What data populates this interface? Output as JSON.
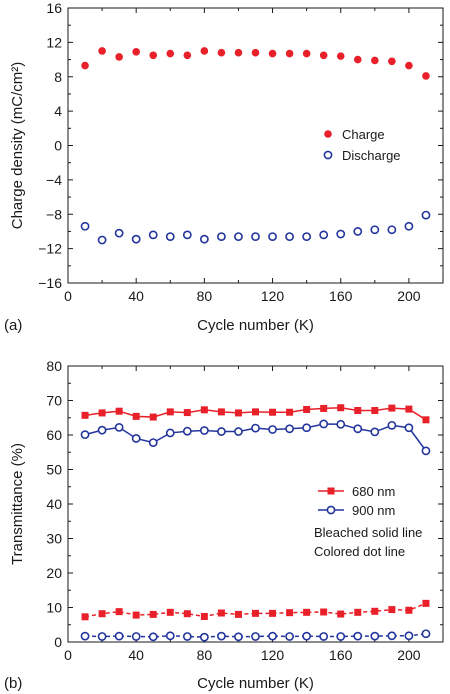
{
  "chart_data": [
    {
      "panel_label": "(a)",
      "type": "scatter",
      "xlabel": "Cycle number (K)",
      "ylabel": "Charge density (mC/cm²)",
      "xlim": [
        0,
        220
      ],
      "ylim": [
        -16,
        16
      ],
      "xticks": [
        0,
        40,
        80,
        120,
        160,
        200
      ],
      "yticks": [
        -16,
        -12,
        -8,
        -4,
        0,
        4,
        8,
        12,
        16
      ],
      "ytick_labels": [
        "−16",
        "−12",
        "−8",
        "−4",
        "0",
        "4",
        "8",
        "12",
        "16"
      ],
      "legend_position": "center-right",
      "series": [
        {
          "name": "Charge",
          "marker": "filled-circle",
          "color": "#e8202a",
          "x": [
            10,
            20,
            30,
            40,
            50,
            60,
            70,
            80,
            90,
            100,
            110,
            120,
            130,
            140,
            150,
            160,
            170,
            180,
            190,
            200,
            210
          ],
          "y": [
            9.3,
            11.0,
            10.3,
            10.9,
            10.5,
            10.7,
            10.5,
            11.0,
            10.8,
            10.8,
            10.8,
            10.7,
            10.7,
            10.7,
            10.5,
            10.4,
            10.0,
            9.9,
            9.8,
            9.3,
            8.1
          ]
        },
        {
          "name": "Discharge",
          "marker": "open-circle",
          "color": "#23359c",
          "x": [
            10,
            20,
            30,
            40,
            50,
            60,
            70,
            80,
            90,
            100,
            110,
            120,
            130,
            140,
            150,
            160,
            170,
            180,
            190,
            200,
            210
          ],
          "y": [
            -9.4,
            -11.0,
            -10.2,
            -10.9,
            -10.4,
            -10.6,
            -10.4,
            -10.9,
            -10.6,
            -10.6,
            -10.6,
            -10.6,
            -10.6,
            -10.6,
            -10.4,
            -10.3,
            -10.0,
            -9.8,
            -9.8,
            -9.4,
            -8.1
          ]
        }
      ]
    },
    {
      "panel_label": "(b)",
      "type": "line",
      "xlabel": "Cycle number (K)",
      "ylabel": "Transmittance (%)",
      "xlim": [
        0,
        220
      ],
      "ylim": [
        0,
        80
      ],
      "xticks": [
        0,
        40,
        80,
        120,
        160,
        200
      ],
      "yticks": [
        0,
        10,
        20,
        30,
        40,
        50,
        60,
        70,
        80
      ],
      "ytick_labels": [
        "0",
        "10",
        "20",
        "30",
        "40",
        "50",
        "60",
        "70",
        "80"
      ],
      "legend_position": "center-right",
      "annotation_lines": [
        "Bleached solid line",
        "Colored dot line"
      ],
      "legend": [
        {
          "name": "680 nm",
          "marker": "filled-square",
          "color": "#e8202a"
        },
        {
          "name": "900 nm",
          "marker": "open-circle",
          "color": "#23359c"
        }
      ],
      "series": [
        {
          "name": "680 nm",
          "state": "Bleached",
          "line": "solid",
          "marker": "filled-square",
          "color": "#e8202a",
          "x": [
            10,
            20,
            30,
            40,
            50,
            60,
            70,
            80,
            90,
            100,
            110,
            120,
            130,
            140,
            150,
            160,
            170,
            180,
            190,
            200,
            210
          ],
          "y": [
            65.7,
            66.4,
            66.9,
            65.4,
            65.2,
            66.7,
            66.5,
            67.3,
            66.7,
            66.4,
            66.7,
            66.6,
            66.6,
            67.4,
            67.7,
            67.9,
            67.1,
            67.1,
            67.8,
            67.5,
            64.4
          ]
        },
        {
          "name": "900 nm",
          "state": "Bleached",
          "line": "solid",
          "marker": "open-circle",
          "color": "#23359c",
          "x": [
            10,
            20,
            30,
            40,
            50,
            60,
            70,
            80,
            90,
            100,
            110,
            120,
            130,
            140,
            150,
            160,
            170,
            180,
            190,
            200,
            210
          ],
          "y": [
            60.1,
            61.4,
            62.2,
            59.0,
            57.8,
            60.6,
            61.1,
            61.3,
            61.0,
            61.0,
            62.0,
            61.6,
            61.8,
            62.1,
            63.2,
            63.1,
            61.8,
            60.9,
            62.8,
            62.1,
            55.4
          ]
        },
        {
          "name": "680 nm",
          "state": "Colored",
          "line": "dotted",
          "marker": "filled-square",
          "color": "#e8202a",
          "x": [
            10,
            20,
            30,
            40,
            50,
            60,
            70,
            80,
            90,
            100,
            110,
            120,
            130,
            140,
            150,
            160,
            170,
            180,
            190,
            200,
            210
          ],
          "y": [
            7.3,
            8.2,
            8.8,
            7.8,
            8.0,
            8.6,
            8.2,
            7.4,
            8.4,
            8.0,
            8.3,
            8.3,
            8.5,
            8.6,
            8.7,
            8.1,
            8.6,
            8.9,
            9.4,
            9.2,
            11.2
          ]
        },
        {
          "name": "900 nm",
          "state": "Colored",
          "line": "dotted",
          "marker": "open-circle",
          "color": "#23359c",
          "x": [
            10,
            20,
            30,
            40,
            50,
            60,
            70,
            80,
            90,
            100,
            110,
            120,
            130,
            140,
            150,
            160,
            170,
            180,
            190,
            200,
            210
          ],
          "y": [
            1.7,
            1.6,
            1.7,
            1.6,
            1.5,
            1.8,
            1.6,
            1.4,
            1.7,
            1.5,
            1.6,
            1.7,
            1.6,
            1.7,
            1.6,
            1.6,
            1.7,
            1.7,
            1.8,
            1.8,
            2.4
          ]
        }
      ]
    }
  ]
}
